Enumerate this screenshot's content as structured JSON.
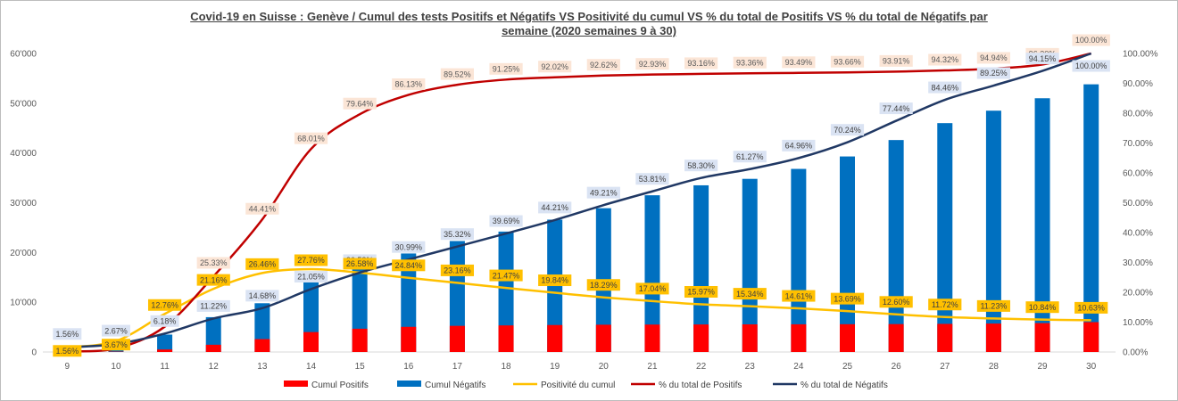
{
  "title_line1": "Covid-19 en Suisse : Genève / Cumul des tests Positifs et Négatifs VS Positivité du cumul VS % du total de Positifs VS % du total de Négatifs par",
  "title_line2": "semaine (2020 semaines 9 à 30)",
  "chart_data": {
    "type": "bar",
    "categories": [
      "9",
      "10",
      "11",
      "12",
      "13",
      "14",
      "15",
      "16",
      "17",
      "18",
      "19",
      "20",
      "21",
      "22",
      "23",
      "24",
      "25",
      "26",
      "27",
      "28",
      "29",
      "30"
    ],
    "y_left_ticks": [
      "0",
      "10'000",
      "20'000",
      "30'000",
      "40'000",
      "50'000",
      "60'000"
    ],
    "y_right_ticks": [
      "0.00%",
      "10.00%",
      "20.00%",
      "30.00%",
      "40.00%",
      "50.00%",
      "60.00%",
      "70.00%",
      "80.00%",
      "90.00%",
      "100.00%"
    ],
    "ylim_left": [
      0,
      60000
    ],
    "ylim_right": [
      0,
      1
    ],
    "series": [
      {
        "name": "Cumul Positifs",
        "type": "bar",
        "axis": "left",
        "color": "#ff0000",
        "values": [
          13,
          71,
          509,
          1456,
          2591,
          4000,
          4674,
          5055,
          5254,
          5343,
          5420,
          5481,
          5511,
          5533,
          5553,
          5566,
          5583,
          5608,
          5649,
          5711,
          5799,
          5998
        ]
      },
      {
        "name": "Cumul Négatifs",
        "type": "bar",
        "axis": "left",
        "color": "#0070c0",
        "values": [
          830,
          1500,
          3500,
          7000,
          9800,
          14000,
          17000,
          19800,
          22300,
          24200,
          26600,
          28900,
          31500,
          33500,
          34800,
          36800,
          39300,
          42600,
          46000,
          48500,
          51000,
          53800
        ]
      },
      {
        "name": "Positivité du cumul",
        "type": "line",
        "axis": "right",
        "color": "#ffc000",
        "label_bg": "#ffc000",
        "label_color": "#404040",
        "values": [
          0.0156,
          0.0367,
          0.1276,
          0.2116,
          0.2646,
          0.2776,
          0.2658,
          0.2484,
          0.2316,
          0.2147,
          0.1984,
          0.1829,
          0.1704,
          0.1597,
          0.1534,
          0.1461,
          0.1369,
          0.126,
          0.1172,
          0.1123,
          0.1084,
          0.1063
        ],
        "labels": [
          "1.56%",
          "3.67%",
          "12.76%",
          "21.16%",
          "26.46%",
          "27.76%",
          "26.58%",
          "24.84%",
          "23.16%",
          "21.47%",
          "19.84%",
          "18.29%",
          "17.04%",
          "15.97%",
          "15.34%",
          "14.61%",
          "13.69%",
          "12.60%",
          "11.72%",
          "11.23%",
          "10.84%",
          "10.63%"
        ]
      },
      {
        "name": "% du total de Positifs",
        "type": "line",
        "axis": "right",
        "color": "#c00000",
        "label_bg": "#fbe5d6",
        "label_color": "#595959",
        "values": [
          0.0022,
          0.0118,
          0.0849,
          0.2533,
          0.4441,
          0.6801,
          0.7964,
          0.8613,
          0.8952,
          0.9125,
          0.9202,
          0.9262,
          0.9293,
          0.9316,
          0.9336,
          0.9349,
          0.9366,
          0.9391,
          0.9432,
          0.9494,
          0.963,
          1.0
        ],
        "labels": [
          "",
          "",
          "",
          "25.33%",
          "44.41%",
          "68.01%",
          "79.64%",
          "86.13%",
          "89.52%",
          "91.25%",
          "92.02%",
          "92.62%",
          "92.93%",
          "93.16%",
          "93.36%",
          "93.49%",
          "93.66%",
          "93.91%",
          "94.32%",
          "94.94%",
          "96.30%",
          "100.00%"
        ]
      },
      {
        "name": "% du total de Négatifs",
        "type": "line",
        "axis": "right",
        "color": "#203864",
        "label_bg": "#dae3f3",
        "label_color": "#404040",
        "values": [
          0.0156,
          0.0267,
          0.0618,
          0.1122,
          0.1468,
          0.2105,
          0.2658,
          0.3099,
          0.3532,
          0.3969,
          0.4421,
          0.4921,
          0.5381,
          0.583,
          0.6127,
          0.6496,
          0.7024,
          0.7744,
          0.8446,
          0.8925,
          0.9415,
          1.0
        ],
        "labels": [
          "1.56%",
          "2.67%",
          "6.18%",
          "11.22%",
          "14.68%",
          "21.05%",
          "26.58%",
          "30.99%",
          "35.32%",
          "39.69%",
          "44.21%",
          "49.21%",
          "53.81%",
          "58.30%",
          "61.27%",
          "64.96%",
          "70.24%",
          "77.44%",
          "84.46%",
          "89.25%",
          "94.15%",
          "100.00%"
        ]
      }
    ],
    "legend_position": "bottom",
    "grid": false
  }
}
